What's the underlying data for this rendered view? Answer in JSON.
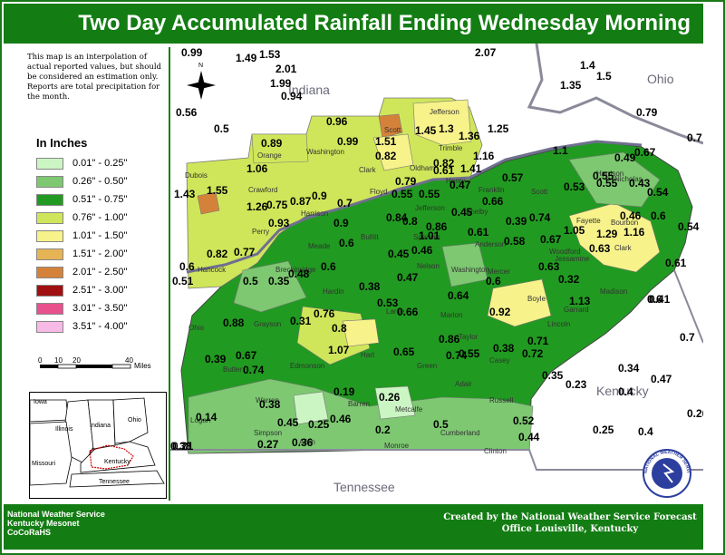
{
  "title": "Two Day Accumulated Rainfall Ending Wednesday Morning",
  "disclaimer": "This map is an interpolation of actual reported values, but should be considered an estimation only. Reports are total precipitation for the month.",
  "legend": {
    "title": "In Inches",
    "items": [
      {
        "label": "0.01\" - 0.25\"",
        "color": "#ccf5c4"
      },
      {
        "label": "0.26\" - 0.50\"",
        "color": "#7dc871"
      },
      {
        "label": "0.51\" - 0.75\"",
        "color": "#219a21"
      },
      {
        "label": "0.76\" - 1.00\"",
        "color": "#d0e65a"
      },
      {
        "label": "1.01\" - 1.50\"",
        "color": "#f7f28a"
      },
      {
        "label": "1.51\" - 2.00\"",
        "color": "#e6b455"
      },
      {
        "label": "2.01\" - 2.50\"",
        "color": "#d4823a"
      },
      {
        "label": "2.51\" - 3.00\"",
        "color": "#a01010"
      },
      {
        "label": "3.01\" - 3.50\"",
        "color": "#e8508e"
      },
      {
        "label": "3.51\" - 4.00\"",
        "color": "#f7b9e6"
      }
    ]
  },
  "scale": {
    "ticks": [
      "0",
      "10",
      "20",
      "40"
    ],
    "unit": "Miles"
  },
  "inset": {
    "states": [
      "Iowa",
      "Illinois",
      "Indiana",
      "Ohio",
      "Missouri",
      "Kentucky",
      "Tennessee"
    ]
  },
  "map_labels": {
    "states": [
      "Indiana",
      "Ohio",
      "Kentucky",
      "Tennessee"
    ],
    "north": "N",
    "counties": [
      "Dubois",
      "Orange",
      "Washington",
      "Scott",
      "Jefferson",
      "Trimble",
      "Clark",
      "Oldham",
      "Henry",
      "Crawford",
      "Floyd",
      "Harrison",
      "Jefferson",
      "Shelby",
      "Franklin",
      "Scott",
      "Harrison",
      "Nicholas",
      "Bourbon",
      "Fayette",
      "Clark",
      "Woodford",
      "Jessamine",
      "Madison",
      "Perry",
      "Meade",
      "Bullitt",
      "Spencer",
      "Anderson",
      "Hancock",
      "Breckinridge",
      "Nelson",
      "Washington",
      "Mercer",
      "Boyle",
      "Garrard",
      "Lincoln",
      "Hardin",
      "Larue",
      "Marion",
      "Ohio",
      "Grayson",
      "Taylor",
      "Casey",
      "Butler",
      "Edmonson",
      "Hart",
      "Green",
      "Adair",
      "Russell",
      "Warren",
      "Barren",
      "Metcalfe",
      "Logan",
      "Simpson",
      "Allen",
      "Monroe",
      "Cumberland",
      "Clinton"
    ],
    "values": [
      "0.99",
      "1.49",
      "1.53",
      "2.01",
      "1.99",
      "0.94",
      "0.56",
      "0.5",
      "2.07",
      "1.4",
      "1.5",
      "1.35",
      "0.79",
      "0.7",
      "0.96",
      "0.89",
      "0.99",
      "1.51",
      "0.82",
      "1.45",
      "1.3",
      "1.36",
      "1.25",
      "1.1",
      "0.49",
      "0.67",
      "1.06",
      "1.16",
      "0.82",
      "1.41",
      "0.79",
      "0.55",
      "0.61",
      "0.47",
      "0.57",
      "0.55",
      "0.53",
      "0.43",
      "0.54",
      "1.43",
      "1.55",
      "1.26",
      "0.75",
      "0.87",
      "0.9",
      "0.7",
      "0.55",
      "0.55",
      "0.45",
      "0.66",
      "0.39",
      "0.74",
      "1.05",
      "1.29",
      "0.46",
      "0.6",
      "0.93",
      "0.9",
      "0.84",
      "0.8",
      "0.86",
      "0.61",
      "0.58",
      "0.67",
      "0.63",
      "1.16",
      "0.54",
      "0.82",
      "0.77",
      "0.6",
      "1.01",
      "0.45",
      "0.46",
      "0.63",
      "0.32",
      "0.61",
      "0.6",
      "0.51",
      "0.5",
      "0.35",
      "0.48",
      "0.6",
      "0.47",
      "0.38",
      "0.53",
      "0.66",
      "0.64",
      "0.6",
      "0.41",
      "0.6",
      "0.92",
      "1.13",
      "0.88",
      "0.31",
      "0.76",
      "0.8",
      "1.07",
      "0.86",
      "0.74",
      "0.38",
      "0.72",
      "0.71",
      "0.7",
      "0.39",
      "0.67",
      "0.74",
      "0.65",
      "0.55",
      "0.35",
      "0.23",
      "0.34",
      "0.47",
      "0.4",
      "0.38",
      "0.19",
      "0.38",
      "0.26",
      "0.14",
      "0.45",
      "0.25",
      "0.46",
      "0.2",
      "0.5",
      "0.52",
      "0.26",
      "0.27",
      "0.36",
      "0.44",
      "0.25",
      "0.4",
      "0.21",
      "0.19"
    ]
  },
  "footer": {
    "left_lines": [
      "National Weather Service",
      "Kentucky Mesonet",
      "CoCoRaHS"
    ],
    "right_lines": [
      "Created by the National Weather Service Forecast",
      "Office Louisville, Kentucky"
    ]
  },
  "logo_text": "NATIONAL WEATHER SERVICE"
}
